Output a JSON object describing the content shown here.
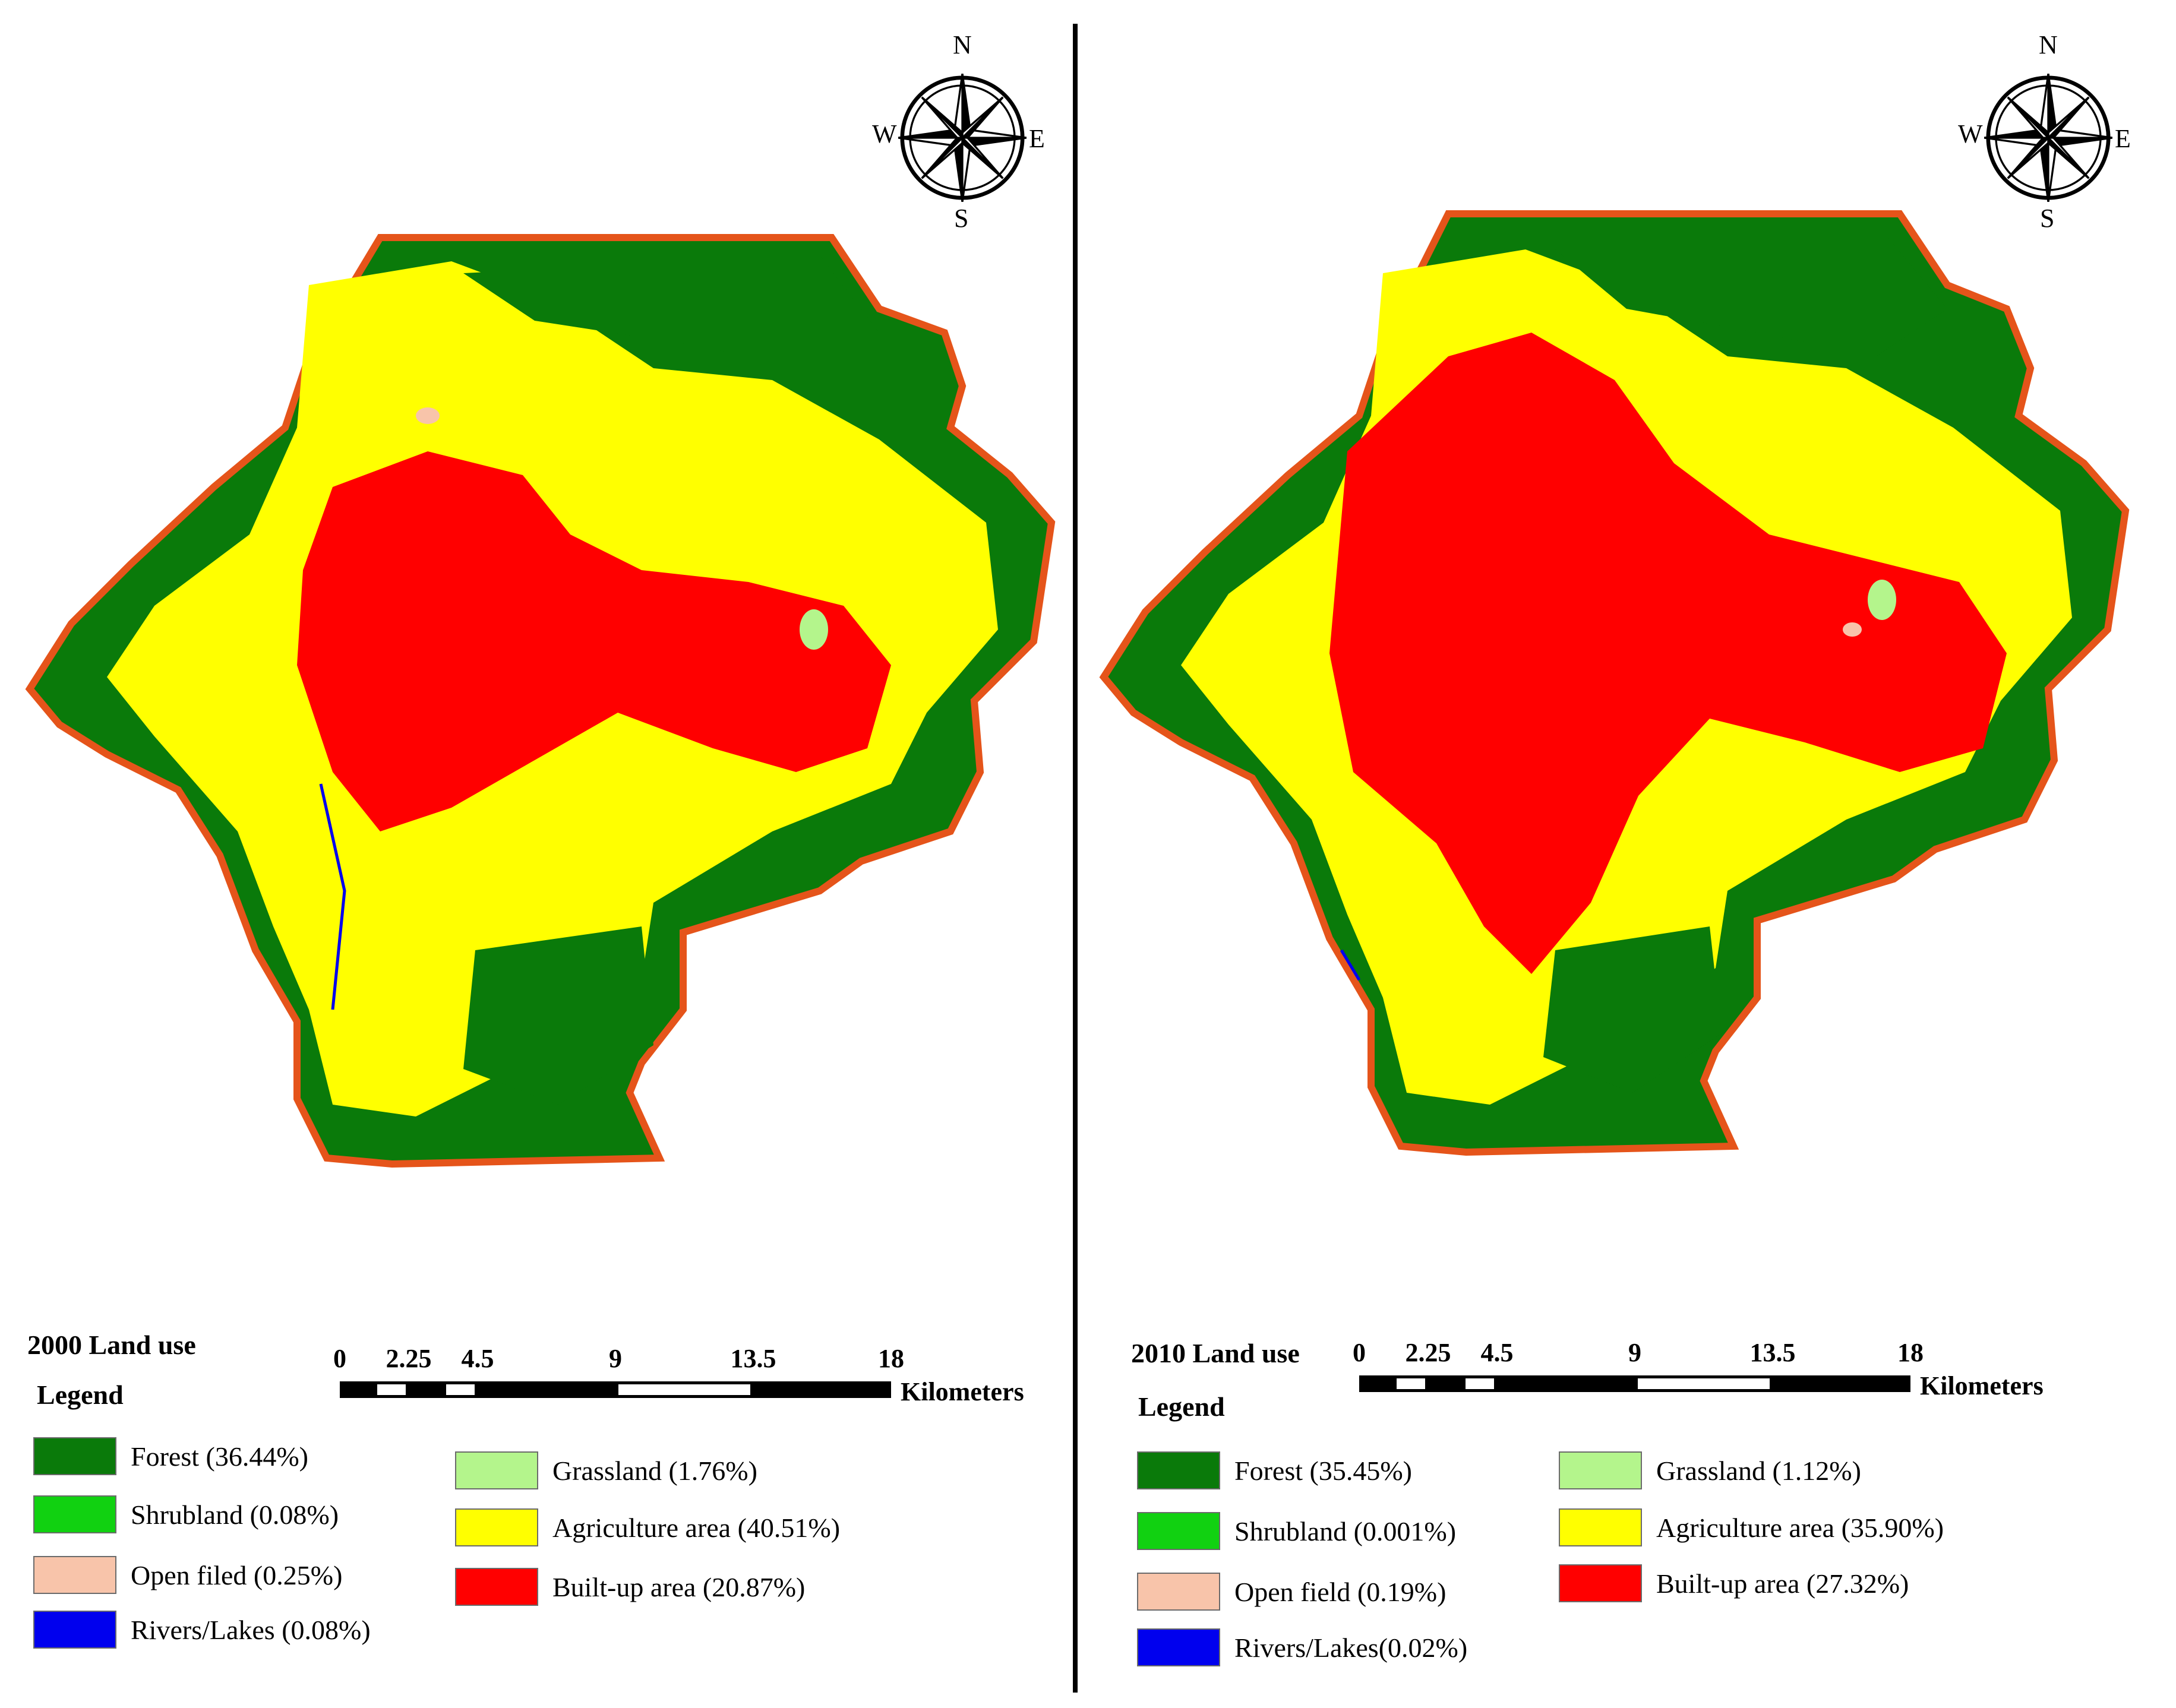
{
  "colors": {
    "forest": "#0a7a0a",
    "shrubland": "#11d111",
    "open_field": "#f8c4aa",
    "rivers_lakes": "#0000ee",
    "grassland": "#b4f58c",
    "agriculture": "#ffff00",
    "builtup": "#ff0000",
    "boundary": "#e5541a"
  },
  "compass": {
    "n": "N",
    "s": "S",
    "e": "E",
    "w": "W"
  },
  "left_map": {
    "title": "2000 Land use",
    "legend_heading": "Legend",
    "scale": {
      "ticks": [
        "0",
        "2.25",
        "4.5",
        "9",
        "13.5",
        "18"
      ],
      "unit": "Kilometers"
    },
    "legend": [
      {
        "key": "forest",
        "label": "Forest (36.44%)",
        "percent": 36.44
      },
      {
        "key": "shrubland",
        "label": "Shrubland (0.08%)",
        "percent": 0.08
      },
      {
        "key": "open_field",
        "label": "Open filed (0.25%)",
        "percent": 0.25
      },
      {
        "key": "rivers_lakes",
        "label": "Rivers/Lakes (0.08%)",
        "percent": 0.08
      },
      {
        "key": "grassland",
        "label": "Grassland (1.76%)",
        "percent": 1.76
      },
      {
        "key": "agriculture",
        "label": "Agriculture area (40.51%)",
        "percent": 40.51
      },
      {
        "key": "builtup",
        "label": "Built-up area (20.87%)",
        "percent": 20.87
      }
    ]
  },
  "right_map": {
    "title": "2010 Land use",
    "legend_heading": "Legend",
    "scale": {
      "ticks": [
        "0",
        "2.25",
        "4.5",
        "9",
        "13.5",
        "18"
      ],
      "unit": "Kilometers"
    },
    "legend": [
      {
        "key": "forest",
        "label": "Forest (35.45%)",
        "percent": 35.45
      },
      {
        "key": "shrubland",
        "label": "Shrubland (0.001%)",
        "percent": 0.001
      },
      {
        "key": "open_field",
        "label": "Open field (0.19%)",
        "percent": 0.19
      },
      {
        "key": "rivers_lakes",
        "label": "Rivers/Lakes(0.02%)",
        "percent": 0.02
      },
      {
        "key": "grassland",
        "label": "Grassland (1.12%)",
        "percent": 1.12
      },
      {
        "key": "agriculture",
        "label": "Agriculture area (35.90%)",
        "percent": 35.9
      },
      {
        "key": "builtup",
        "label": "Built-up area (27.32%)",
        "percent": 27.32
      }
    ]
  }
}
